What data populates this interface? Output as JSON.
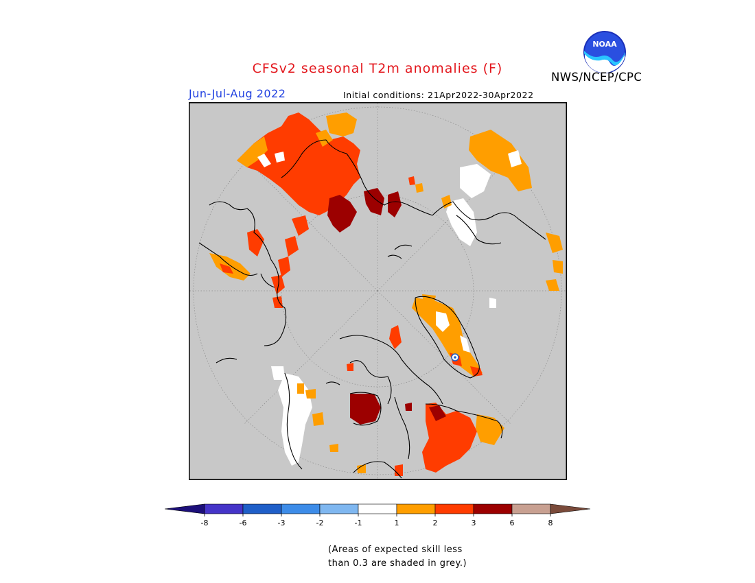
{
  "header": {
    "title": "CFSv2 seasonal T2m anomalies (F)",
    "period": "Jun-Jul-Aug 2022",
    "initial_conditions": "Initial conditions: 21Apr2022-30Apr2022",
    "agency": "NWS/NCEP/CPC",
    "logo_text": "NOAA"
  },
  "map": {
    "projection": "north polar stereographic",
    "background_color": "#c8c8c8",
    "coastline_color": "#000000"
  },
  "legend": {
    "bins": [
      {
        "color": "#1c0f7a"
      },
      {
        "color": "#4534c8"
      },
      {
        "color": "#1f5fc8"
      },
      {
        "color": "#3d8ce8"
      },
      {
        "color": "#7fb7f0"
      },
      {
        "color": "#ffffff"
      },
      {
        "color": "#ff9e00"
      },
      {
        "color": "#ff3c00"
      },
      {
        "color": "#9c0000"
      },
      {
        "color": "#c8a091"
      },
      {
        "color": "#7a4a3a"
      }
    ],
    "ticks": [
      "-8",
      "-6",
      "-3",
      "-2",
      "-1",
      "1",
      "2",
      "3",
      "6",
      "8"
    ]
  },
  "note": {
    "line1": "(Areas of expected skill less",
    "line2": "than 0.3 are shaded in grey.)"
  }
}
